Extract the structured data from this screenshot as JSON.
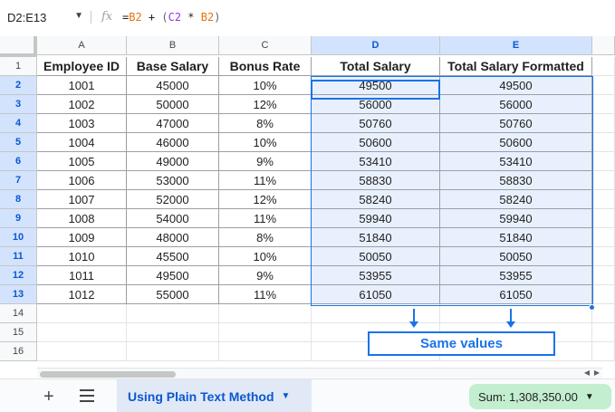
{
  "formula_bar": {
    "name_box": "D2:E13",
    "fx_icon": "fx",
    "formula_eq": "=",
    "formula_ref1": "B2",
    "formula_plus": " + ",
    "formula_open": "(",
    "formula_ref2": "C2",
    "formula_mul": " * ",
    "formula_ref3": "B2",
    "formula_close": ")"
  },
  "columns": [
    "A",
    "B",
    "C",
    "D",
    "E"
  ],
  "row_numbers": [
    "1",
    "2",
    "3",
    "4",
    "5",
    "6",
    "7",
    "8",
    "9",
    "10",
    "11",
    "12",
    "13",
    "14",
    "15",
    "16"
  ],
  "headers": [
    "Employee ID",
    "Base Salary",
    "Bonus Rate",
    "Total Salary",
    "Total Salary Formatted"
  ],
  "rows": [
    [
      "1001",
      "45000",
      "10%",
      "49500",
      "49500"
    ],
    [
      "1002",
      "50000",
      "12%",
      "56000",
      "56000"
    ],
    [
      "1003",
      "47000",
      "8%",
      "50760",
      "50760"
    ],
    [
      "1004",
      "46000",
      "10%",
      "50600",
      "50600"
    ],
    [
      "1005",
      "49000",
      "9%",
      "53410",
      "53410"
    ],
    [
      "1006",
      "53000",
      "11%",
      "58830",
      "58830"
    ],
    [
      "1007",
      "52000",
      "12%",
      "58240",
      "58240"
    ],
    [
      "1008",
      "54000",
      "11%",
      "59940",
      "59940"
    ],
    [
      "1009",
      "48000",
      "8%",
      "51840",
      "51840"
    ],
    [
      "1010",
      "45500",
      "10%",
      "50050",
      "50050"
    ],
    [
      "1011",
      "49500",
      "9%",
      "53955",
      "53955"
    ],
    [
      "1012",
      "55000",
      "11%",
      "61050",
      "61050"
    ]
  ],
  "annotation": {
    "label": "Same values"
  },
  "bottom_bar": {
    "add_sheet": "+",
    "sheet_tab": "Using Plain Text Method",
    "sum": "Sum: 1,308,350.00"
  },
  "colors": {
    "selection": "#1a73e8",
    "selection_fill": "#e8f0fe",
    "tab_text": "#0b57d0",
    "sum_bg": "#c4eed0"
  }
}
